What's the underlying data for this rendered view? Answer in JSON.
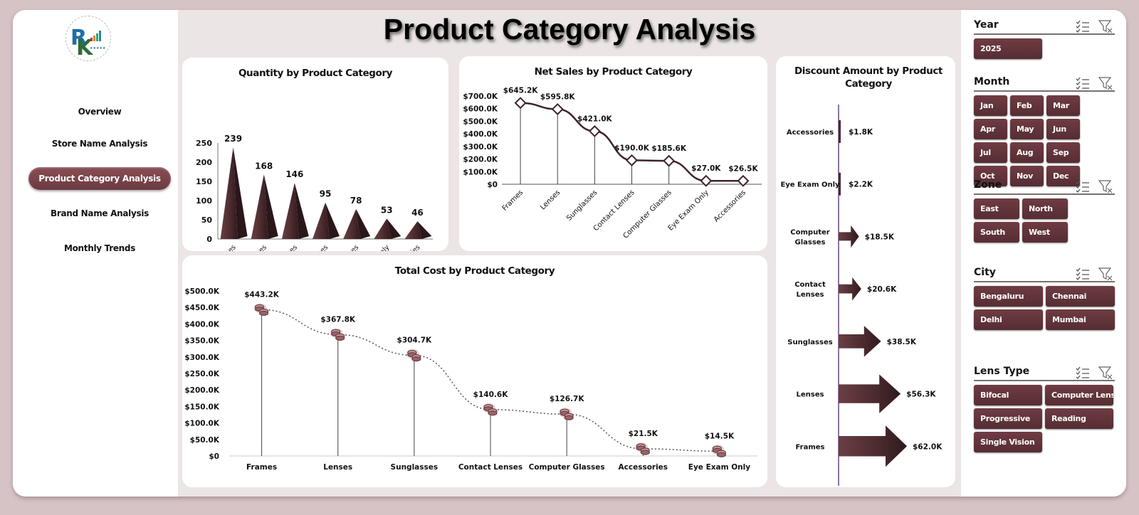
{
  "page_title": "Product Category Analysis",
  "colors": {
    "accent": "#6b3a40",
    "bar": "#4a2a2e",
    "background": "#ebe5e5",
    "outer": "#d6c3c6"
  },
  "nav": {
    "items": [
      {
        "label": "Overview",
        "active": false
      },
      {
        "label": "Store Name Analysis",
        "active": false
      },
      {
        "label": "Product Category Analysis",
        "active": true
      },
      {
        "label": "Brand Name Analysis",
        "active": false
      },
      {
        "label": "Monthly Trends",
        "active": false
      }
    ]
  },
  "slicers": {
    "year": {
      "title": "Year",
      "items": [
        "2025"
      ]
    },
    "month": {
      "title": "Month",
      "items": [
        "Jan",
        "Feb",
        "Mar",
        "Apr",
        "May",
        "Jun",
        "Jul",
        "Aug",
        "Sep",
        "Oct",
        "Nov",
        "Dec"
      ]
    },
    "zone": {
      "title": "Zone",
      "items": [
        "East",
        "North",
        "South",
        "West"
      ]
    },
    "city": {
      "title": "City",
      "items": [
        "Bengaluru",
        "Chennai",
        "Delhi",
        "Mumbai"
      ]
    },
    "lens_type": {
      "title": "Lens Type",
      "items": [
        "Bifocal",
        "Computer Lens",
        "Progressive",
        "Reading",
        "Single Vision"
      ]
    }
  },
  "chart_data": [
    {
      "type": "bar",
      "title": "Quantity by Product Category",
      "categories": [
        "Frames",
        "Lenses",
        "Sunglasses",
        "Contact Lenses",
        "Computer Glasses",
        "Eye Exam Only",
        "Accessories"
      ],
      "values": [
        239,
        168,
        146,
        95,
        78,
        53,
        46
      ],
      "labels": [
        "239",
        "168",
        "146",
        "95",
        "78",
        "53",
        "46"
      ],
      "yticks": [
        "0",
        "50",
        "100",
        "150",
        "200",
        "250"
      ],
      "ylim": [
        0,
        250
      ],
      "xlabel": "",
      "ylabel": ""
    },
    {
      "type": "line",
      "title": "Net Sales by Product Category",
      "categories": [
        "Frames",
        "Lenses",
        "Sunglasses",
        "Contact Lenses",
        "Computer Glasses",
        "Eye Exam Only",
        "Accessories"
      ],
      "values": [
        645.2,
        595.8,
        421.0,
        190.0,
        185.6,
        27.0,
        26.5
      ],
      "labels": [
        "$645.2K",
        "$595.8K",
        "$421.0K",
        "$190.0K",
        "$185.6K",
        "$27.0K",
        "$26.5K"
      ],
      "yticks": [
        "$0",
        "$100.0K",
        "$200.0K",
        "$300.0K",
        "$400.0K",
        "$500.0K",
        "$600.0K",
        "$700.0K"
      ],
      "ylim": [
        0,
        700
      ],
      "unit": "$K"
    },
    {
      "type": "bar",
      "orientation": "horizontal",
      "title": "Discount Amount by Product Category",
      "categories": [
        "Accessories",
        "Eye Exam Only",
        "Computer Glasses",
        "Contact Lenses",
        "Sunglasses",
        "Lenses",
        "Frames"
      ],
      "values": [
        1.8,
        2.2,
        18.5,
        20.6,
        38.5,
        56.3,
        62.0
      ],
      "labels": [
        "$1.8K",
        "$2.2K",
        "$18.5K",
        "$20.6K",
        "$38.5K",
        "$56.3K",
        "$62.0K"
      ],
      "unit": "$K"
    },
    {
      "type": "line",
      "title": "Total Cost by Product Category",
      "categories": [
        "Frames",
        "Lenses",
        "Sunglasses",
        "Contact Lenses",
        "Computer Glasses",
        "Accessories",
        "Eye Exam Only"
      ],
      "values": [
        443.2,
        367.8,
        304.7,
        140.6,
        126.7,
        21.5,
        14.5
      ],
      "labels": [
        "$443.2K",
        "$367.8K",
        "$304.7K",
        "$140.6K",
        "$126.7K",
        "$21.5K",
        "$14.5K"
      ],
      "yticks": [
        "$0",
        "$50.0K",
        "$100.0K",
        "$150.0K",
        "$200.0K",
        "$250.0K",
        "$300.0K",
        "$350.0K",
        "$400.0K",
        "$450.0K",
        "$500.0K"
      ],
      "ylim": [
        0,
        500
      ],
      "unit": "$K"
    }
  ]
}
